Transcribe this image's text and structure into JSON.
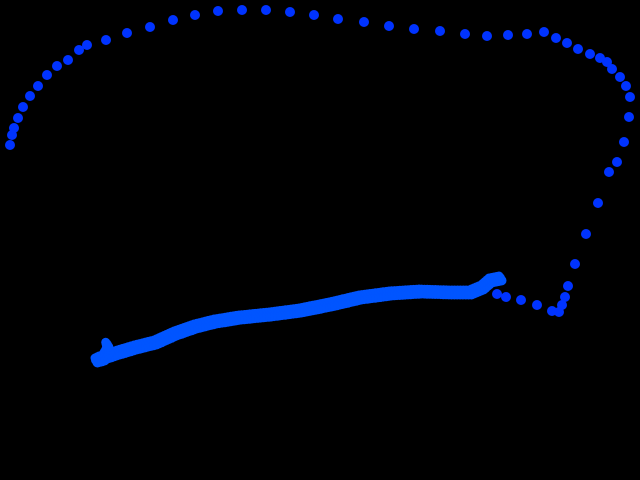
{
  "canvas": {
    "background": "#000000"
  },
  "trajectory": {
    "sparse_color": "#0033ff",
    "dense_color": "#0055ff"
  }
}
